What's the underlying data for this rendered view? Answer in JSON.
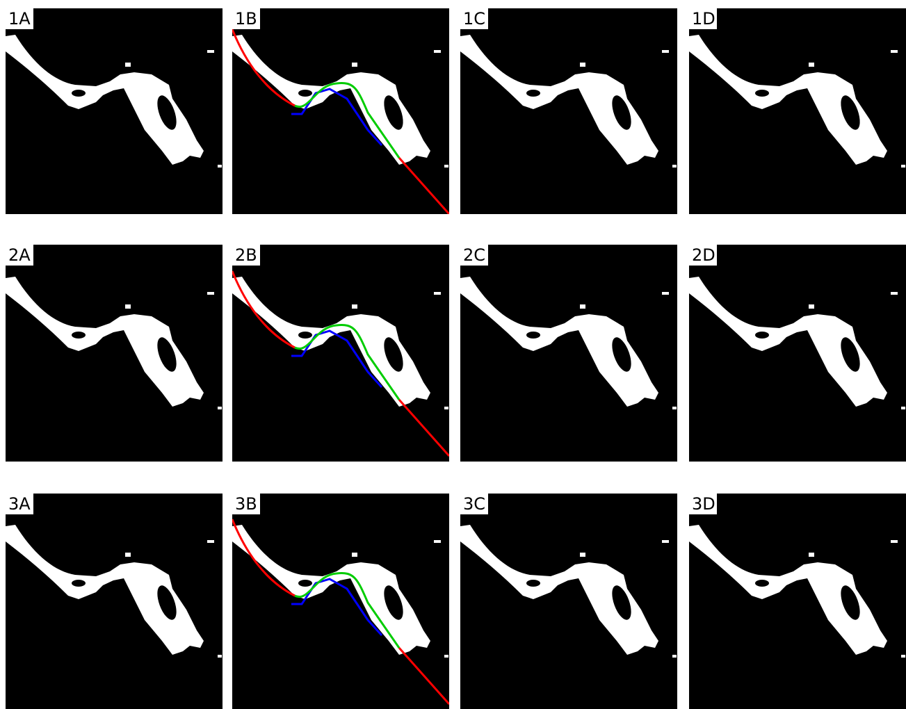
{
  "panels": [
    {
      "label": "1A"
    },
    {
      "label": "1B"
    },
    {
      "label": "1C"
    },
    {
      "label": "1D"
    },
    {
      "label": "2A"
    },
    {
      "label": "2B"
    },
    {
      "label": "2C"
    },
    {
      "label": "2D"
    },
    {
      "label": "3A"
    },
    {
      "label": "3B"
    },
    {
      "label": "3C"
    },
    {
      "label": "3D"
    }
  ]
}
